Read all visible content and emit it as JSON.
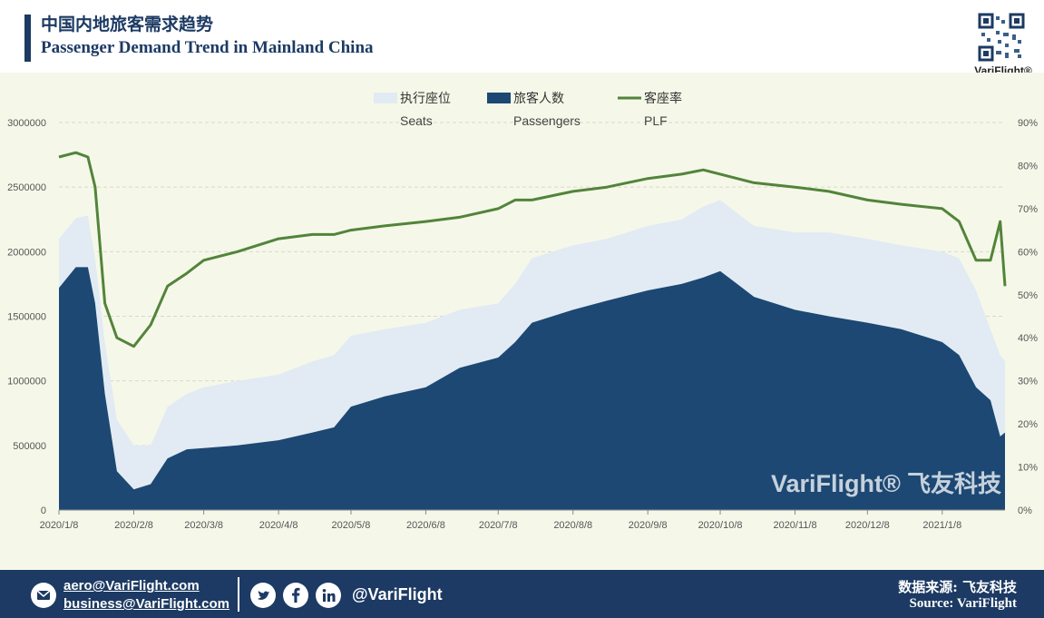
{
  "header": {
    "title_cn": "中国内地旅客需求趋势",
    "title_en": "Passenger Demand Trend in Mainland China",
    "qr_brand": "VariFlight®"
  },
  "watermark": {
    "en": "VariFlight®",
    "cn": "飞友科技"
  },
  "footer": {
    "email_1": "aero@VariFlight.com",
    "email_2": "business@VariFlight.com",
    "handle": "@VariFlight",
    "source_cn": "数据来源: 飞友科技",
    "source_en": "Source: VariFlight"
  },
  "colors": {
    "seats": "#e2ebf3",
    "passengers": "#1c4873",
    "plf": "#52843a",
    "plot_background": "#f5f8e9",
    "brand_navy": "#1c3a63"
  },
  "chart_data": {
    "type": "area",
    "x_tick_labels": [
      "2020/1/8",
      "2020/2/8",
      "2020/3/8",
      "2020/4/8",
      "2020/5/8",
      "2020/6/8",
      "2020/7/8",
      "2020/8/8",
      "2020/9/8",
      "2020/10/8",
      "2020/11/8",
      "2020/12/8",
      "2021/1/8"
    ],
    "y_left": {
      "min": 0,
      "max": 3000000,
      "ticks": [
        "0",
        "500000",
        "1000000",
        "1500000",
        "2000000",
        "2500000",
        "3000000"
      ]
    },
    "y_right": {
      "min": 0,
      "max": 90,
      "ticks": [
        "0%",
        "10%",
        "20%",
        "30%",
        "40%",
        "50%",
        "60%",
        "70%",
        "80%",
        "90%"
      ]
    },
    "legend": [
      {
        "key": "seats",
        "cn": "执行座位",
        "en": "Seats"
      },
      {
        "key": "passengers",
        "cn": "旅客人数",
        "en": "Passengers"
      },
      {
        "key": "plf",
        "cn": "客座率",
        "en": "PLF"
      }
    ],
    "grid": "horizontal dashed",
    "x": [
      "2020/1/8",
      "2020/1/15",
      "2020/1/20",
      "2020/1/23",
      "2020/1/27",
      "2020/2/1",
      "2020/2/8",
      "2020/2/15",
      "2020/2/22",
      "2020/3/1",
      "2020/3/8",
      "2020/3/22",
      "2020/4/8",
      "2020/4/22",
      "2020/5/1",
      "2020/5/8",
      "2020/5/22",
      "2020/6/8",
      "2020/6/22",
      "2020/7/8",
      "2020/7/15",
      "2020/7/22",
      "2020/8/8",
      "2020/8/22",
      "2020/9/8",
      "2020/9/22",
      "2020/10/1",
      "2020/10/8",
      "2020/10/15",
      "2020/10/22",
      "2020/11/8",
      "2020/11/22",
      "2020/12/8",
      "2020/12/22",
      "2021/1/8",
      "2021/1/15",
      "2021/1/22",
      "2021/1/28",
      "2021/2/1",
      "2021/2/3"
    ],
    "series": [
      {
        "name": "执行座位 Seats",
        "key": "seats",
        "values": [
          2100000,
          2260000,
          2280000,
          1950000,
          1300000,
          700000,
          500000,
          500000,
          800000,
          900000,
          950000,
          1000000,
          1050000,
          1150000,
          1200000,
          1350000,
          1400000,
          1450000,
          1550000,
          1600000,
          1750000,
          1950000,
          2050000,
          2100000,
          2200000,
          2250000,
          2350000,
          2400000,
          2300000,
          2200000,
          2150000,
          2150000,
          2100000,
          2050000,
          2000000,
          1950000,
          1700000,
          1400000,
          1200000,
          1150000
        ]
      },
      {
        "name": "旅客人数 Passengers",
        "key": "passengers",
        "values": [
          1720000,
          1880000,
          1880000,
          1600000,
          900000,
          300000,
          160000,
          200000,
          400000,
          470000,
          480000,
          500000,
          540000,
          600000,
          640000,
          800000,
          880000,
          950000,
          1100000,
          1180000,
          1300000,
          1450000,
          1550000,
          1620000,
          1700000,
          1750000,
          1800000,
          1850000,
          1750000,
          1650000,
          1550000,
          1500000,
          1450000,
          1400000,
          1300000,
          1200000,
          950000,
          850000,
          570000,
          600000
        ]
      },
      {
        "name": "客座率 PLF",
        "key": "plf",
        "values": [
          82,
          83,
          82,
          75,
          48,
          40,
          38,
          43,
          52,
          55,
          58,
          60,
          63,
          64,
          64,
          65,
          66,
          67,
          68,
          70,
          72,
          72,
          74,
          75,
          77,
          78,
          79,
          78,
          77,
          76,
          75,
          74,
          72,
          71,
          70,
          67,
          58,
          58,
          67,
          52
        ]
      }
    ]
  }
}
